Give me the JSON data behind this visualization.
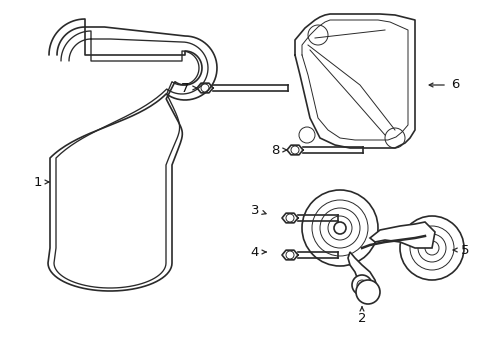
{
  "background_color": "#ffffff",
  "line_color": "#2a2a2a",
  "lw": 1.2,
  "tlw": 0.7,
  "fig_w": 4.89,
  "fig_h": 3.6,
  "dpi": 100
}
